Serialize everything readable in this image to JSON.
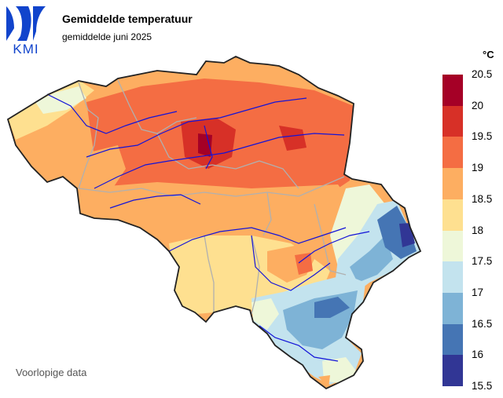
{
  "header": {
    "title": "Gemiddelde temperatuur",
    "subtitle": "gemiddelde juni 2025"
  },
  "logo": {
    "text": "KMI",
    "color": "#1144cc"
  },
  "footnote": "Voorlopige data",
  "legend": {
    "unit": "°C",
    "labels": [
      "20.5",
      "20",
      "19.5",
      "19",
      "18.5",
      "18",
      "17.5",
      "17",
      "16.5",
      "16",
      "15.5"
    ],
    "colors": [
      "#a50026",
      "#d73027",
      "#f46d43",
      "#fdae61",
      "#fee090",
      "#eef7d9",
      "#c3e3ee",
      "#7eb3d6",
      "#4575b4",
      "#313695"
    ]
  },
  "map": {
    "country": "Belgium",
    "border_color": "#222222",
    "province_border_color": "#b0b0b0",
    "river_color": "#1414d8",
    "warmest_color": "#d73027",
    "coolest_color": "#313695"
  }
}
